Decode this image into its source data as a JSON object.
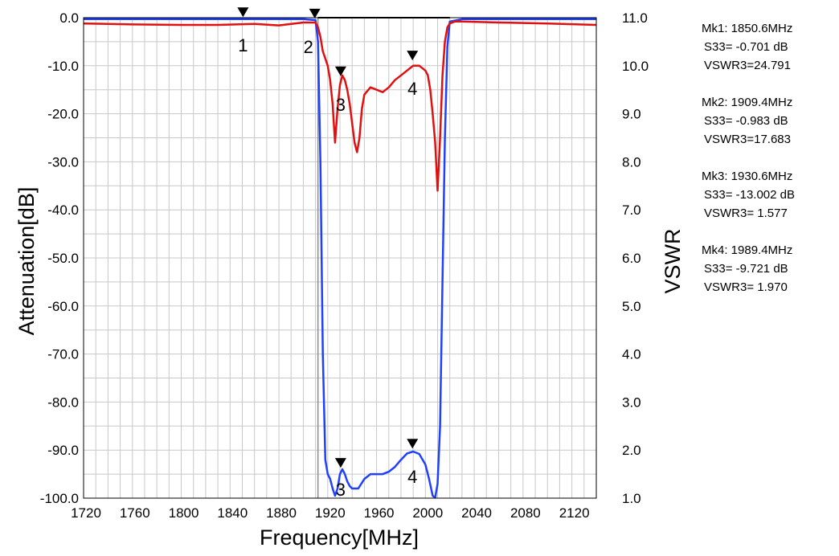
{
  "chart_data": {
    "type": "line",
    "xlabel": "Frequency[MHz]",
    "ylabel_left": "Attenuation[dB]",
    "ylabel_right": "VSWR",
    "xlim": [
      1720,
      2140
    ],
    "ylim_left": [
      -100,
      0
    ],
    "ylim_right": [
      1,
      11
    ],
    "grid": true,
    "x_ticks": [
      "1720",
      "1760",
      "1800",
      "1840",
      "1880",
      "1920",
      "1960",
      "2000",
      "2040",
      "2080",
      "2120"
    ],
    "y_ticks_left": [
      "0.0",
      "-10.0",
      "-20.0",
      "-30.0",
      "-40.0",
      "-50.0",
      "-60.0",
      "-70.0",
      "-80.0",
      "-90.0",
      "-100.0"
    ],
    "y_ticks_right": [
      "11.0",
      "10.0",
      "9.0",
      "8.0",
      "7.0",
      "6.0",
      "5.0",
      "4.0",
      "3.0",
      "2.0",
      "1.0"
    ],
    "series": [
      {
        "color": "#2040ff",
        "axis": "left",
        "x": [
          1720,
          1800,
          1900,
          1910,
          1912,
          1914,
          1916,
          1918,
          1920,
          1922,
          1924,
          1926,
          1928,
          1930,
          1932,
          1934,
          1936,
          1938,
          1940,
          1945,
          1950,
          1955,
          1960,
          1965,
          1970,
          1975,
          1980,
          1985,
          1990,
          1995,
          2000,
          2003,
          2006,
          2008,
          2010,
          2012,
          2014,
          2016,
          2018,
          2020,
          2030,
          2140
        ],
        "y": [
          -0.3,
          -0.3,
          -0.3,
          -0.5,
          -5,
          -30,
          -70,
          -92,
          -95,
          -96,
          -98,
          -99.5,
          -98,
          -95,
          -94,
          -95,
          -96.5,
          -97.5,
          -98,
          -98,
          -96,
          -95,
          -95,
          -95,
          -94.5,
          -93.5,
          -92,
          -90.7,
          -90.3,
          -90.8,
          -93,
          -96,
          -99.5,
          -99.9,
          -97,
          -85,
          -55,
          -25,
          -6,
          -0.8,
          -0.3,
          -0.3
        ]
      },
      {
        "color": "#e01010",
        "axis": "left",
        "x": [
          1720,
          1760,
          1800,
          1830,
          1860,
          1880,
          1900,
          1910,
          1912,
          1914,
          1916,
          1918,
          1920,
          1922,
          1924,
          1926,
          1928,
          1930,
          1932,
          1934,
          1936,
          1938,
          1940,
          1942,
          1944,
          1946,
          1948,
          1950,
          1955,
          1960,
          1965,
          1970,
          1975,
          1980,
          1985,
          1990,
          1995,
          2000,
          2002,
          2004,
          2006,
          2008,
          2010,
          2012,
          2014,
          2016,
          2018,
          2020,
          2024,
          2030,
          2060,
          2100,
          2140
        ],
        "y": [
          -1.2,
          -1.4,
          -1.5,
          -1.5,
          -1.3,
          -1.6,
          -1.0,
          -1.0,
          -2,
          -4,
          -7,
          -8.5,
          -10,
          -13,
          -18,
          -26,
          -19,
          -14,
          -12,
          -13,
          -15,
          -18,
          -22,
          -26,
          -28,
          -25,
          -19,
          -16,
          -14.5,
          -15,
          -15.5,
          -14.5,
          -13,
          -12,
          -11,
          -10,
          -10,
          -11,
          -12,
          -15,
          -20,
          -26,
          -36,
          -25,
          -12,
          -5,
          -2,
          -1.2,
          -0.8,
          -0.8,
          -1.0,
          -1.2,
          -1.5
        ]
      }
    ],
    "markers": [
      {
        "label": "1",
        "x": 1850.6,
        "y": -0.701
      },
      {
        "label": "2",
        "x": 1909.4,
        "y": -0.983
      },
      {
        "label": "3",
        "x": 1930.6,
        "y": -13.002
      },
      {
        "label": "4",
        "x": 1989.4,
        "y": -9.721
      },
      {
        "label": "3",
        "x": 1930.6,
        "y": -94.5
      },
      {
        "label": "4",
        "x": 1989.4,
        "y": -90.5
      }
    ]
  },
  "marker_info": [
    {
      "freq": "Mk1: 1850.6MHz",
      "s33": "S33= -0.701 dB",
      "vswr": "VSWR3=24.791"
    },
    {
      "freq": "Mk2: 1909.4MHz",
      "s33": "S33= -0.983 dB",
      "vswr": "VSWR3=17.683"
    },
    {
      "freq": "Mk3: 1930.6MHz",
      "s33": "S33= -13.002 dB",
      "vswr": "VSWR3= 1.577"
    },
    {
      "freq": "Mk4: 1989.4MHz",
      "s33": "S33= -9.721 dB",
      "vswr": "VSWR3= 1.970"
    }
  ]
}
